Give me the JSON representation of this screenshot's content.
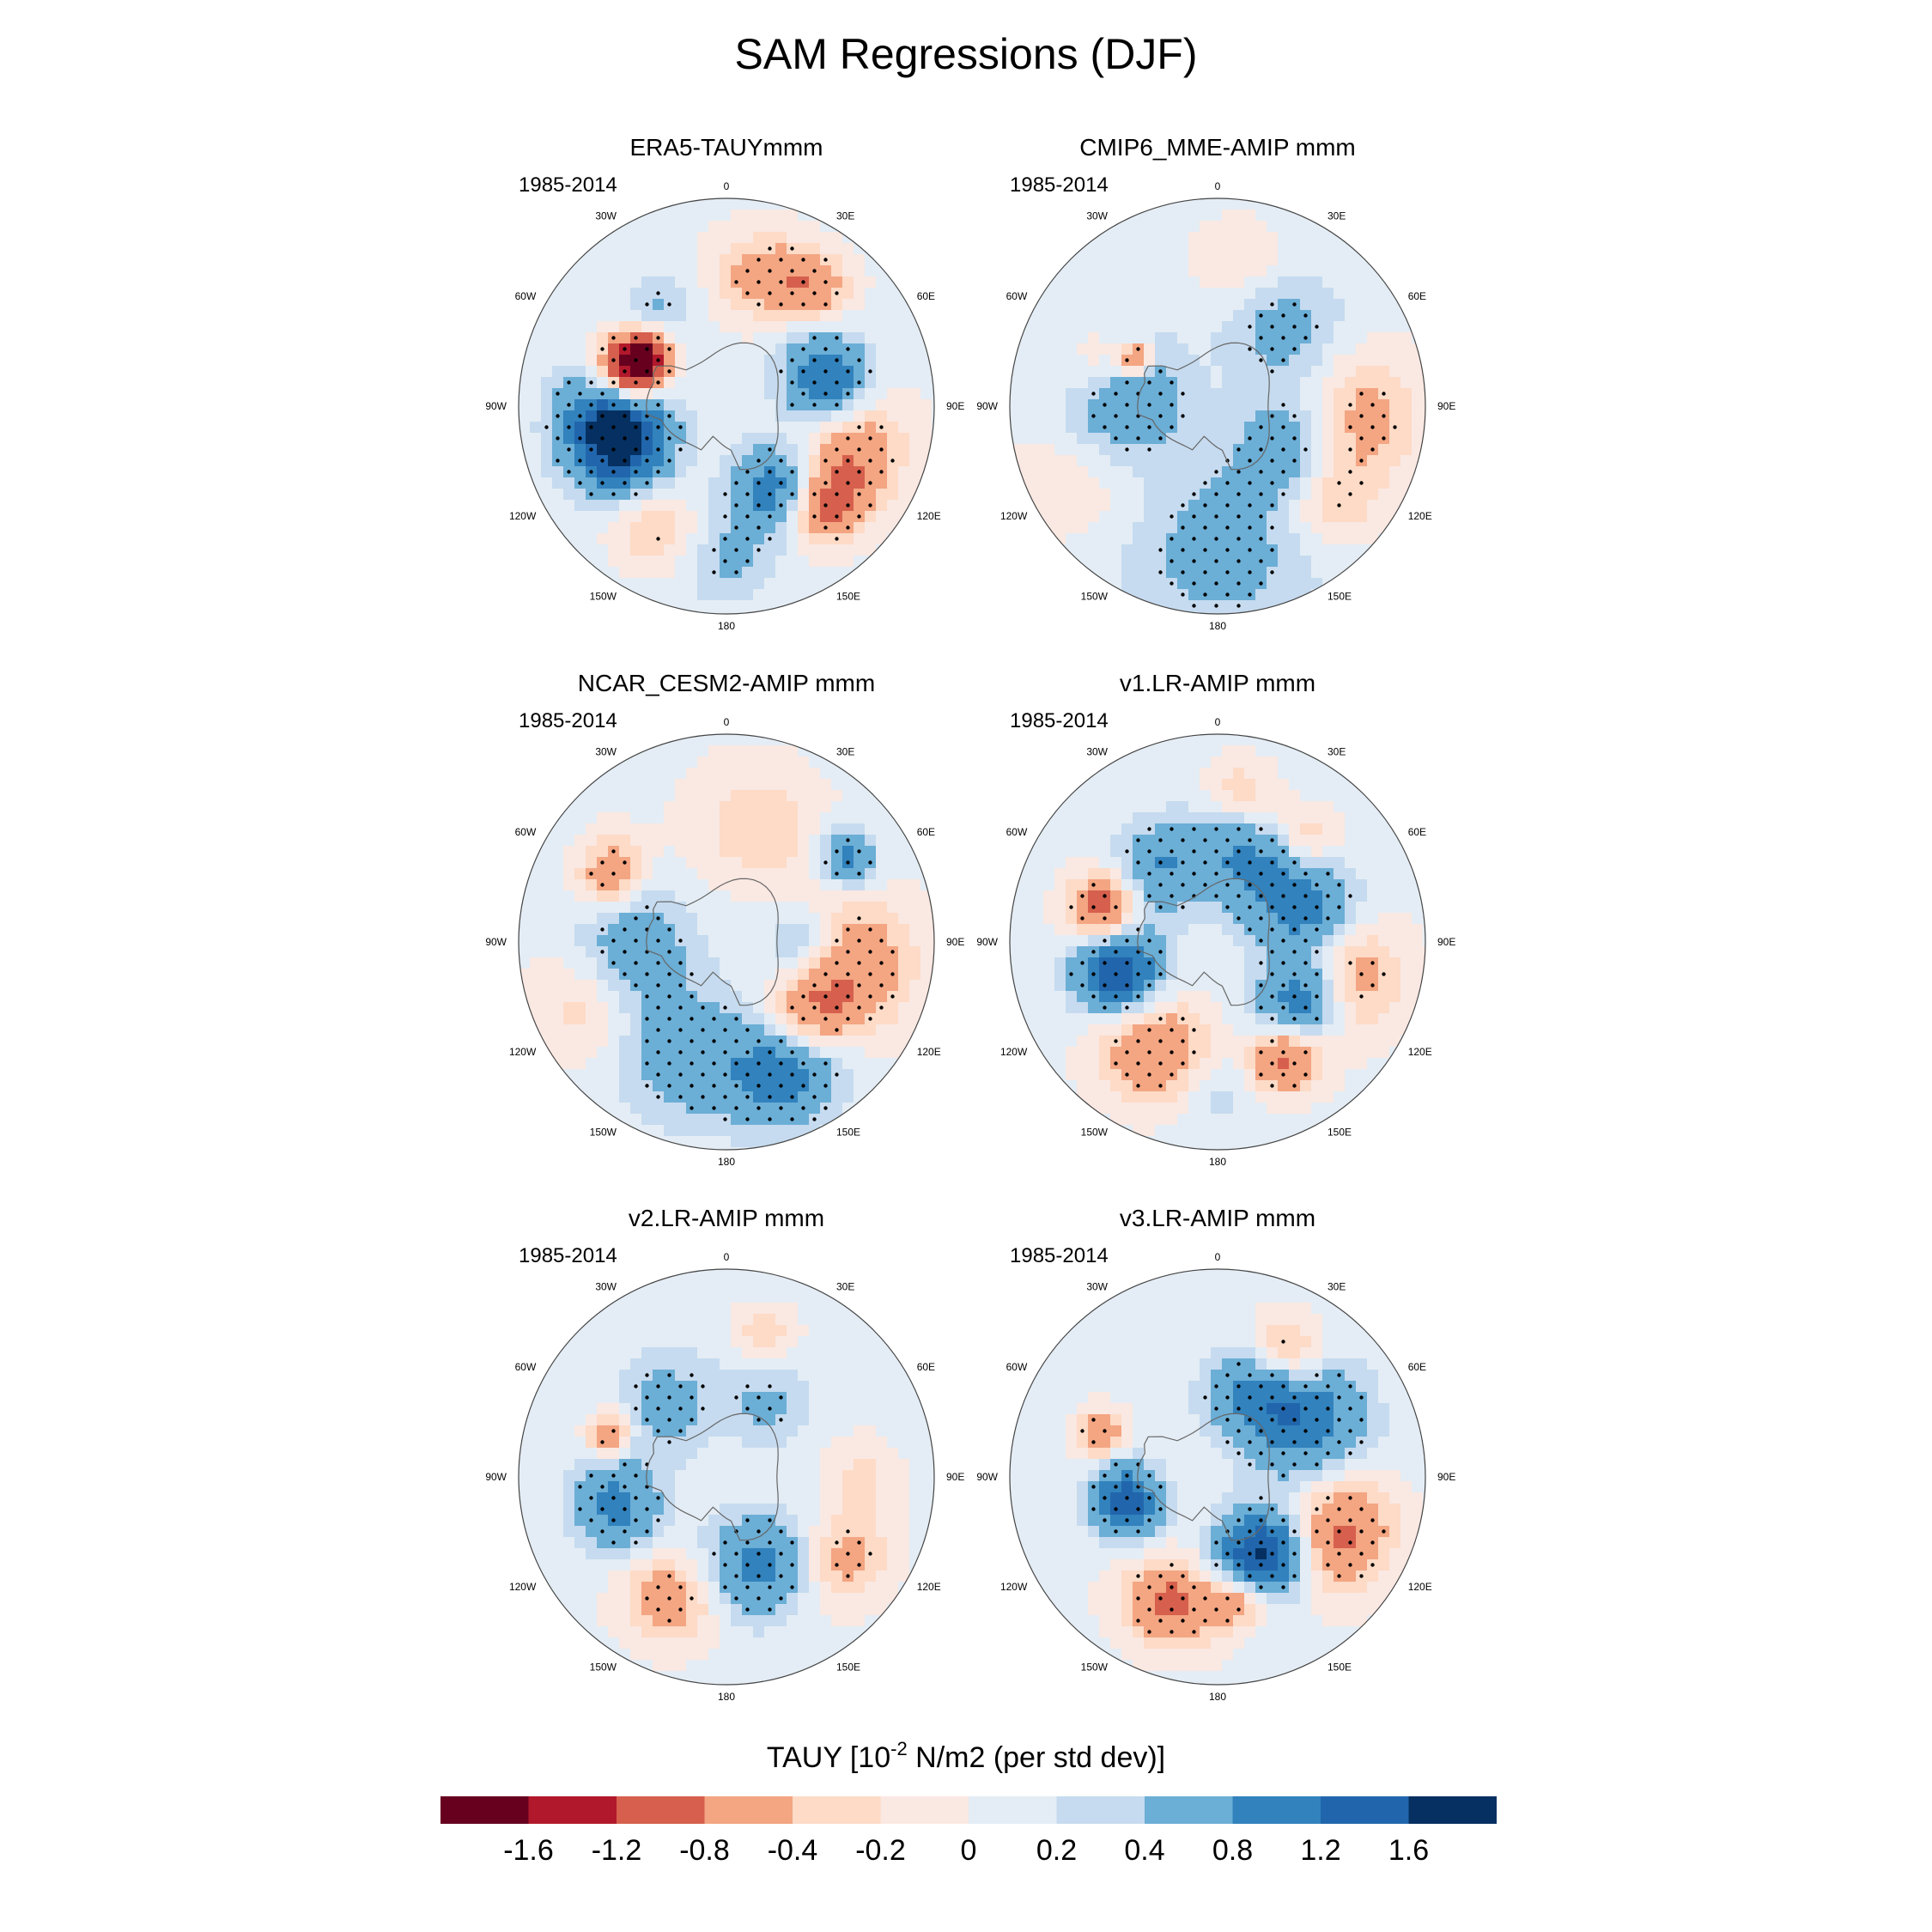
{
  "figure": {
    "title": "SAM Regressions (DJF)"
  },
  "panels": [
    {
      "title": "ERA5-TAUYmmm",
      "period": "1985-2014",
      "blobs": [
        {
          "lon": 290,
          "lat": -55,
          "r": 8,
          "v": -1.7
        },
        {
          "lon": 300,
          "lat": -58,
          "r": 6,
          "v": -1.2
        },
        {
          "lon": 260,
          "lat": -52,
          "r": 12,
          "v": 1.8
        },
        {
          "lon": 245,
          "lat": -50,
          "r": 10,
          "v": 0.5
        },
        {
          "lon": 75,
          "lat": -55,
          "r": 10,
          "v": 1.2
        },
        {
          "lon": 150,
          "lat": -58,
          "r": 10,
          "v": 1.0
        },
        {
          "lon": 110,
          "lat": -45,
          "r": 12,
          "v": -0.8
        },
        {
          "lon": 15,
          "lat": -45,
          "r": 10,
          "v": -0.6
        },
        {
          "lon": 35,
          "lat": -40,
          "r": 8,
          "v": -0.7
        },
        {
          "lon": 210,
          "lat": -42,
          "r": 9,
          "v": -0.5
        },
        {
          "lon": 325,
          "lat": -50,
          "r": 8,
          "v": 0.4
        },
        {
          "lon": 180,
          "lat": -38,
          "r": 10,
          "v": 0.4
        },
        {
          "lon": 135,
          "lat": -42,
          "r": 8,
          "v": -1.0
        }
      ]
    },
    {
      "title": "CMIP6_MME-AMIP  mmm",
      "period": "1985-2014",
      "blobs": [
        {
          "lon": 275,
          "lat": -58,
          "r": 14,
          "v": 0.8
        },
        {
          "lon": 40,
          "lat": -55,
          "r": 14,
          "v": 0.5
        },
        {
          "lon": 120,
          "lat": -62,
          "r": 12,
          "v": 0.6
        },
        {
          "lon": 180,
          "lat": -42,
          "r": 22,
          "v": 0.5
        },
        {
          "lon": 10,
          "lat": -42,
          "r": 10,
          "v": -0.3
        },
        {
          "lon": 95,
          "lat": -42,
          "r": 14,
          "v": -0.6
        },
        {
          "lon": 130,
          "lat": -40,
          "r": 10,
          "v": -0.5
        },
        {
          "lon": 290,
          "lat": -48,
          "r": 8,
          "v": -0.5
        },
        {
          "lon": 300,
          "lat": -58,
          "r": 4,
          "v": -1.0
        },
        {
          "lon": 240,
          "lat": -40,
          "r": 16,
          "v": -0.25
        }
      ]
    },
    {
      "title": "NCAR_CESM2-AMIP  mmm",
      "period": "1985-2014",
      "blobs": [
        {
          "lon": 270,
          "lat": -58,
          "r": 14,
          "v": 0.6
        },
        {
          "lon": 200,
          "lat": -50,
          "r": 16,
          "v": 0.6
        },
        {
          "lon": 155,
          "lat": -42,
          "r": 12,
          "v": 1.0
        },
        {
          "lon": 130,
          "lat": -52,
          "r": 10,
          "v": -0.8
        },
        {
          "lon": 100,
          "lat": -45,
          "r": 14,
          "v": -0.7
        },
        {
          "lon": 15,
          "lat": -50,
          "r": 14,
          "v": -0.4
        },
        {
          "lon": 245,
          "lat": -38,
          "r": 12,
          "v": -0.4
        },
        {
          "lon": 300,
          "lat": -45,
          "r": 8,
          "v": -0.8
        },
        {
          "lon": 55,
          "lat": -40,
          "r": 6,
          "v": 1.0
        },
        {
          "lon": 90,
          "lat": -65,
          "r": 8,
          "v": 0.5
        }
      ]
    },
    {
      "title": "v1.LR-AMIP  mmm",
      "period": "1985-2014",
      "blobs": [
        {
          "lon": 255,
          "lat": -55,
          "r": 10,
          "v": 1.6
        },
        {
          "lon": 125,
          "lat": -55,
          "r": 10,
          "v": 1.2
        },
        {
          "lon": 20,
          "lat": -58,
          "r": 14,
          "v": 0.8
        },
        {
          "lon": 70,
          "lat": -58,
          "r": 12,
          "v": 0.9
        },
        {
          "lon": 320,
          "lat": -58,
          "r": 10,
          "v": 0.7
        },
        {
          "lon": 285,
          "lat": -50,
          "r": 8,
          "v": -1.3
        },
        {
          "lon": 210,
          "lat": -48,
          "r": 12,
          "v": -0.9
        },
        {
          "lon": 150,
          "lat": -45,
          "r": 8,
          "v": -1.1
        },
        {
          "lon": 105,
          "lat": -45,
          "r": 12,
          "v": -0.8
        },
        {
          "lon": 40,
          "lat": -45,
          "r": 8,
          "v": -0.7
        },
        {
          "lon": 10,
          "lat": -40,
          "r": 8,
          "v": -0.6
        },
        {
          "lon": 180,
          "lat": -40,
          "r": 10,
          "v": 0.3
        }
      ]
    },
    {
      "title": "v2.LR-AMIP  mmm",
      "period": "1985-2014",
      "blobs": [
        {
          "lon": 255,
          "lat": -52,
          "r": 10,
          "v": 0.9
        },
        {
          "lon": 160,
          "lat": -58,
          "r": 12,
          "v": 0.9
        },
        {
          "lon": 320,
          "lat": -58,
          "r": 12,
          "v": 0.5
        },
        {
          "lon": 30,
          "lat": -62,
          "r": 10,
          "v": 0.4
        },
        {
          "lon": 205,
          "lat": -45,
          "r": 10,
          "v": -0.7
        },
        {
          "lon": 125,
          "lat": -42,
          "r": 10,
          "v": -0.6
        },
        {
          "lon": 290,
          "lat": -48,
          "r": 5,
          "v": -0.9
        },
        {
          "lon": 15,
          "lat": -40,
          "r": 6,
          "v": -0.4
        },
        {
          "lon": 90,
          "lat": -45,
          "r": 8,
          "v": -0.3
        }
      ]
    },
    {
      "title": "v3.LR-AMIP  mmm",
      "period": "1985-2014",
      "blobs": [
        {
          "lon": 150,
          "lat": -60,
          "r": 10,
          "v": 1.7
        },
        {
          "lon": 255,
          "lat": -58,
          "r": 8,
          "v": 1.4
        },
        {
          "lon": 55,
          "lat": -55,
          "r": 14,
          "v": 1.1
        },
        {
          "lon": 20,
          "lat": -60,
          "r": 10,
          "v": 0.6
        },
        {
          "lon": 200,
          "lat": -45,
          "r": 10,
          "v": -1.0
        },
        {
          "lon": 115,
          "lat": -45,
          "r": 12,
          "v": -1.0
        },
        {
          "lon": 30,
          "lat": -42,
          "r": 8,
          "v": -0.8
        },
        {
          "lon": 290,
          "lat": -48,
          "r": 5,
          "v": -0.9
        },
        {
          "lon": 170,
          "lat": -48,
          "r": 6,
          "v": -0.8
        }
      ]
    }
  ],
  "lon_labels": [
    {
      "text": "0",
      "lon": 0
    },
    {
      "text": "30E",
      "lon": 30
    },
    {
      "text": "60E",
      "lon": 60
    },
    {
      "text": "90E",
      "lon": 90
    },
    {
      "text": "120E",
      "lon": 120
    },
    {
      "text": "150E",
      "lon": 150
    },
    {
      "text": "180",
      "lon": 180
    },
    {
      "text": "150W",
      "lon": 210
    },
    {
      "text": "120W",
      "lon": 240
    },
    {
      "text": "90W",
      "lon": 270
    },
    {
      "text": "60W",
      "lon": 300
    },
    {
      "text": "30W",
      "lon": 330
    }
  ],
  "colorbar": {
    "title": "TAUY [10",
    "title_exponent": "-2",
    "title_suffix": " N/m2 (per std dev)]",
    "levels": [
      "-1.6",
      "-1.2",
      "-0.8",
      "-0.4",
      "-0.2",
      "0",
      "0.2",
      "0.4",
      "0.8",
      "1.2",
      "1.6"
    ],
    "thresholds": [
      -1.6,
      -1.2,
      -0.8,
      -0.4,
      -0.2,
      0,
      0.2,
      0.4,
      0.8,
      1.2,
      1.6
    ],
    "colors": [
      "#67001f",
      "#b2182b",
      "#d6604d",
      "#f4a582",
      "#fddbc7",
      "#fae8e2",
      "#e4edf5",
      "#c6dbef",
      "#6baed6",
      "#3182bd",
      "#2166ac",
      "#053061"
    ]
  }
}
